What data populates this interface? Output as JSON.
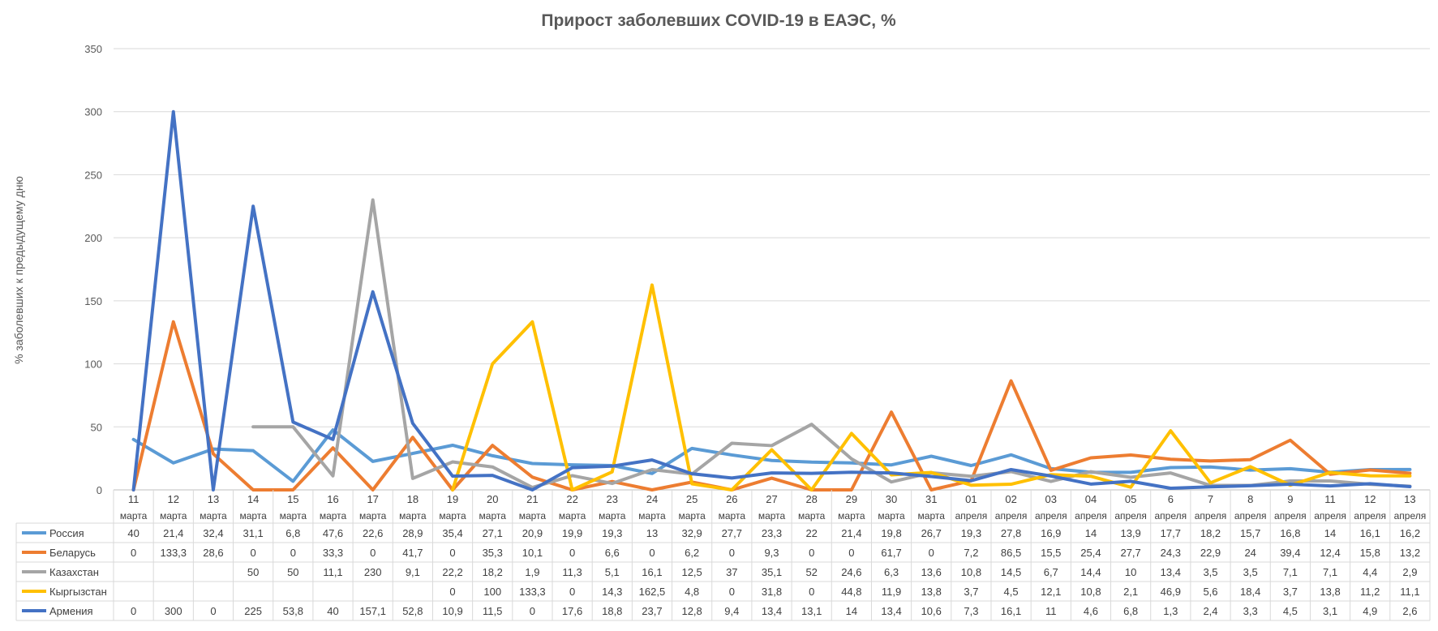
{
  "chart_data": {
    "type": "line",
    "title": "Прирост заболевших COVID-19 в ЕАЭС, %",
    "xlabel": "",
    "ylabel": "% заболевших к предыдущему дню",
    "ylim": [
      0,
      350
    ],
    "yticks": [
      "0",
      "50",
      "100",
      "150",
      "200",
      "250",
      "300",
      "350"
    ],
    "grid": true,
    "legend": "data-table",
    "categories": [
      {
        "day": "11",
        "month": "марта"
      },
      {
        "day": "12",
        "month": "марта"
      },
      {
        "day": "13",
        "month": "марта"
      },
      {
        "day": "14",
        "month": "марта"
      },
      {
        "day": "15",
        "month": "марта"
      },
      {
        "day": "16",
        "month": "марта"
      },
      {
        "day": "17",
        "month": "марта"
      },
      {
        "day": "18",
        "month": "марта"
      },
      {
        "day": "19",
        "month": "марта"
      },
      {
        "day": "20",
        "month": "марта"
      },
      {
        "day": "21",
        "month": "марта"
      },
      {
        "day": "22",
        "month": "марта"
      },
      {
        "day": "23",
        "month": "марта"
      },
      {
        "day": "24",
        "month": "марта"
      },
      {
        "day": "25",
        "month": "марта"
      },
      {
        "day": "26",
        "month": "марта"
      },
      {
        "day": "27",
        "month": "марта"
      },
      {
        "day": "28",
        "month": "марта"
      },
      {
        "day": "29",
        "month": "марта"
      },
      {
        "day": "30",
        "month": "марта"
      },
      {
        "day": "31",
        "month": "марта"
      },
      {
        "day": "01",
        "month": "апреля"
      },
      {
        "day": "02",
        "month": "апреля"
      },
      {
        "day": "03",
        "month": "апреля"
      },
      {
        "day": "04",
        "month": "апреля"
      },
      {
        "day": "05",
        "month": "апреля"
      },
      {
        "day": "6",
        "month": "апреля"
      },
      {
        "day": "7",
        "month": "апреля"
      },
      {
        "day": "8",
        "month": "апреля"
      },
      {
        "day": "9",
        "month": "апреля"
      },
      {
        "day": "11",
        "month": "апреля"
      },
      {
        "day": "12",
        "month": "апреля"
      },
      {
        "day": "13",
        "month": "апреля"
      }
    ],
    "series": [
      {
        "name": "Россия",
        "color": "#5B9BD5",
        "labels": [
          "40",
          "21,4",
          "32,4",
          "31,1",
          "6,8",
          "47,6",
          "22,6",
          "28,9",
          "35,4",
          "27,1",
          "20,9",
          "19,9",
          "19,3",
          "13",
          "32,9",
          "27,7",
          "23,3",
          "22",
          "21,4",
          "19,8",
          "26,7",
          "19,3",
          "27,8",
          "16,9",
          "14",
          "13,9",
          "17,7",
          "18,2",
          "15,7",
          "16,8",
          "14",
          "16,1",
          "16,2"
        ],
        "values": [
          40,
          21.4,
          32.4,
          31.1,
          6.8,
          47.6,
          22.6,
          28.9,
          35.4,
          27.1,
          20.9,
          19.9,
          19.3,
          13,
          32.9,
          27.7,
          23.3,
          22,
          21.4,
          19.8,
          26.7,
          19.3,
          27.8,
          16.9,
          14,
          13.9,
          17.7,
          18.2,
          15.7,
          16.8,
          14,
          16.1,
          16.2
        ]
      },
      {
        "name": "Беларусь",
        "color": "#ED7D31",
        "labels": [
          "0",
          "133,3",
          "28,6",
          "0",
          "0",
          "33,3",
          "0",
          "41,7",
          "0",
          "35,3",
          "10,1",
          "0",
          "6,6",
          "0",
          "6,2",
          "0",
          "9,3",
          "0",
          "0",
          "61,7",
          "0",
          "7,2",
          "86,5",
          "15,5",
          "25,4",
          "27,7",
          "24,3",
          "22,9",
          "24",
          "39,4",
          "12,4",
          "15,8",
          "13,2"
        ],
        "values": [
          0,
          133.3,
          28.6,
          0,
          0,
          33.3,
          0,
          41.7,
          0,
          35.3,
          10.1,
          0,
          6.6,
          0,
          6.2,
          0,
          9.3,
          0,
          0,
          61.7,
          0,
          7.2,
          86.5,
          15.5,
          25.4,
          27.7,
          24.3,
          22.9,
          24,
          39.4,
          12.4,
          15.8,
          13.2
        ]
      },
      {
        "name": "Казахстан",
        "color": "#A5A5A5",
        "labels": [
          "",
          "",
          "",
          "50",
          "50",
          "11,1",
          "230",
          "9,1",
          "22,2",
          "18,2",
          "1,9",
          "11,3",
          "5,1",
          "16,1",
          "12,5",
          "37",
          "35,1",
          "52",
          "24,6",
          "6,3",
          "13,6",
          "10,8",
          "14,5",
          "6,7",
          "14,4",
          "10",
          "13,4",
          "3,5",
          "3,5",
          "7,1",
          "7,1",
          "4,4",
          "2,9"
        ],
        "values": [
          null,
          null,
          null,
          50,
          50,
          11.1,
          230,
          9.1,
          22.2,
          18.2,
          1.9,
          11.3,
          5.1,
          16.1,
          12.5,
          37,
          35.1,
          52,
          24.6,
          6.3,
          13.6,
          10.8,
          14.5,
          6.7,
          14.4,
          10,
          13.4,
          3.5,
          3.5,
          7.1,
          7.1,
          4.4,
          2.9
        ]
      },
      {
        "name": "Кыргызстан",
        "color": "#FFC000",
        "labels": [
          "",
          "",
          "",
          "",
          "",
          "",
          "",
          "",
          "0",
          "100",
          "133,3",
          "0",
          "14,3",
          "162,5",
          "4,8",
          "0",
          "31,8",
          "0",
          "44,8",
          "11,9",
          "13,8",
          "3,7",
          "4,5",
          "12,1",
          "10,8",
          "2,1",
          "46,9",
          "5,6",
          "18,4",
          "3,7",
          "13,8",
          "11,2",
          "11,1"
        ],
        "values": [
          null,
          null,
          null,
          null,
          null,
          null,
          null,
          null,
          0,
          100,
          133.3,
          0,
          14.3,
          162.5,
          4.8,
          0,
          31.8,
          0,
          44.8,
          11.9,
          13.8,
          3.7,
          4.5,
          12.1,
          10.8,
          2.1,
          46.9,
          5.6,
          18.4,
          3.7,
          13.8,
          11.2,
          11.1
        ]
      },
      {
        "name": "Армения",
        "color": "#4472C4",
        "labels": [
          "0",
          "300",
          "0",
          "225",
          "53,8",
          "40",
          "157,1",
          "52,8",
          "10,9",
          "11,5",
          "0",
          "17,6",
          "18,8",
          "23,7",
          "12,8",
          "9,4",
          "13,4",
          "13,1",
          "14",
          "13,4",
          "10,6",
          "7,3",
          "16,1",
          "11",
          "4,6",
          "6,8",
          "1,3",
          "2,4",
          "3,3",
          "4,5",
          "3,1",
          "4,9",
          "2,6"
        ],
        "values": [
          0,
          300,
          0,
          225,
          53.8,
          40,
          157.1,
          52.8,
          10.9,
          11.5,
          0,
          17.6,
          18.8,
          23.7,
          12.8,
          9.4,
          13.4,
          13.1,
          14,
          13.4,
          10.6,
          7.3,
          16.1,
          11,
          4.6,
          6.8,
          1.3,
          2.4,
          3.3,
          4.5,
          3.1,
          4.9,
          2.6
        ]
      }
    ]
  }
}
